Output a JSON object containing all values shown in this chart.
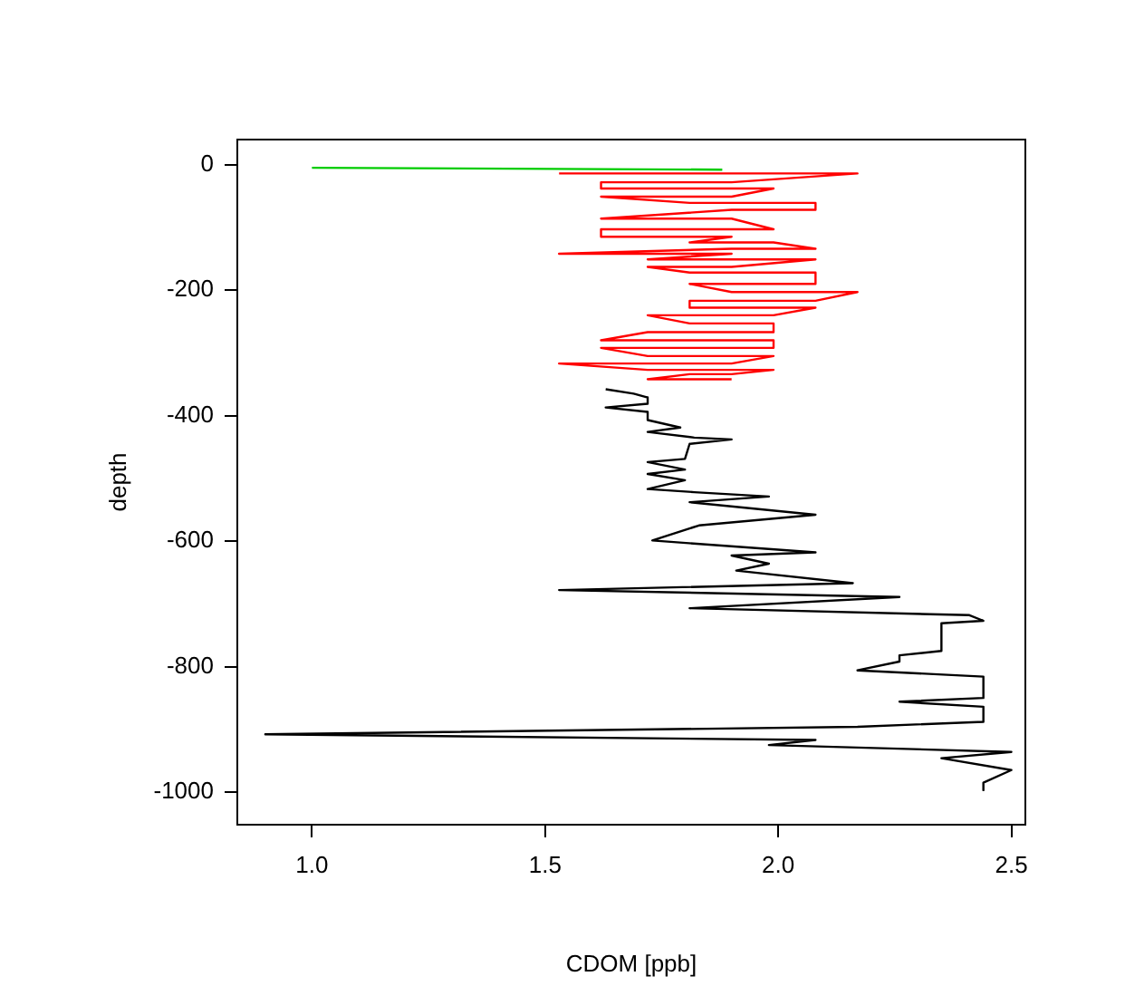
{
  "chart_data": {
    "type": "line",
    "xlabel": "CDOM [ppb]",
    "ylabel": "depth",
    "xlim": [
      0.84,
      2.53
    ],
    "ylim": [
      -1052,
      40
    ],
    "xticks": [
      {
        "value": 1,
        "label": "1.0"
      },
      {
        "value": 1.5,
        "label": "1.5"
      },
      {
        "value": 2,
        "label": "2.0"
      },
      {
        "value": 2.5,
        "label": "2.5"
      }
    ],
    "yticks": [
      -1000,
      -800,
      -600,
      -400,
      -200,
      0
    ],
    "series": [
      {
        "color": "#ff0000",
        "x": [
          1.53,
          2.17,
          1.9,
          1.62,
          1.62,
          1.99,
          1.9,
          1.62,
          1.81,
          2.08,
          2.08,
          1.9,
          1.62,
          1.9,
          1.99,
          1.62,
          1.62,
          1.9,
          1.81,
          1.99,
          2.08,
          1.9,
          1.53,
          1.9,
          1.72,
          2.08,
          1.9,
          1.72,
          1.81,
          2.08,
          2.08,
          1.81,
          1.9,
          2.17,
          2.08,
          1.81,
          1.81,
          2.08,
          1.99,
          1.72,
          1.81,
          1.99,
          1.99,
          1.72,
          1.62,
          1.99,
          1.99,
          1.62,
          1.72,
          1.99,
          1.9,
          1.53,
          1.72,
          1.99,
          1.9,
          1.81,
          1.72,
          1.9
        ],
        "values": [
          -14,
          -14,
          -28,
          -28,
          -38,
          -38,
          -51,
          -51,
          -61,
          -61,
          -72,
          -72,
          -86,
          -86,
          -103,
          -103,
          -115,
          -115,
          -124,
          -124,
          -134,
          -134,
          -142,
          -142,
          -151,
          -151,
          -163,
          -163,
          -172,
          -172,
          -190,
          -190,
          -203,
          -203,
          -217,
          -217,
          -228,
          -228,
          -240,
          -240,
          -253,
          -253,
          -267,
          -267,
          -280,
          -280,
          -292,
          -292,
          -305,
          -305,
          -317,
          -317,
          -327,
          -327,
          -334,
          -334,
          -342,
          -342
        ]
      },
      {
        "color": "#000000",
        "x": [
          1.63,
          1.69,
          1.72,
          1.72,
          1.63,
          1.72,
          1.72,
          1.79,
          1.72,
          1.82,
          1.9,
          1.81,
          1.8,
          1.72,
          1.8,
          1.72,
          1.8,
          1.72,
          1.82,
          1.98,
          1.81,
          2.08,
          1.83,
          1.73,
          2.08,
          1.9,
          1.98,
          1.91,
          2.16,
          1.53,
          2.26,
          1.81,
          2.41,
          2.44,
          2.35,
          2.35,
          2.26,
          2.26,
          2.17,
          2.44,
          2.44,
          2.26,
          2.44,
          2.44,
          2.17,
          0.9,
          2.08,
          1.98,
          2.5,
          2.35,
          2.5,
          2.44,
          2.44
        ],
        "values": [
          -358,
          -365,
          -371,
          -381,
          -387,
          -394,
          -407,
          -419,
          -426,
          -435,
          -438,
          -445,
          -469,
          -474,
          -486,
          -493,
          -503,
          -517,
          -522,
          -529,
          -538,
          -558,
          -575,
          -599,
          -618,
          -623,
          -636,
          -647,
          -667,
          -678,
          -689,
          -707,
          -718,
          -727,
          -731,
          -775,
          -782,
          -792,
          -806,
          -816,
          -850,
          -856,
          -864,
          -888,
          -896,
          -908,
          -917,
          -925,
          -936,
          -946,
          -965,
          -985,
          -997
        ]
      },
      {
        "color": "#00cc00",
        "x": [
          1.0,
          1.88
        ],
        "values": [
          -5,
          -8
        ]
      }
    ]
  }
}
